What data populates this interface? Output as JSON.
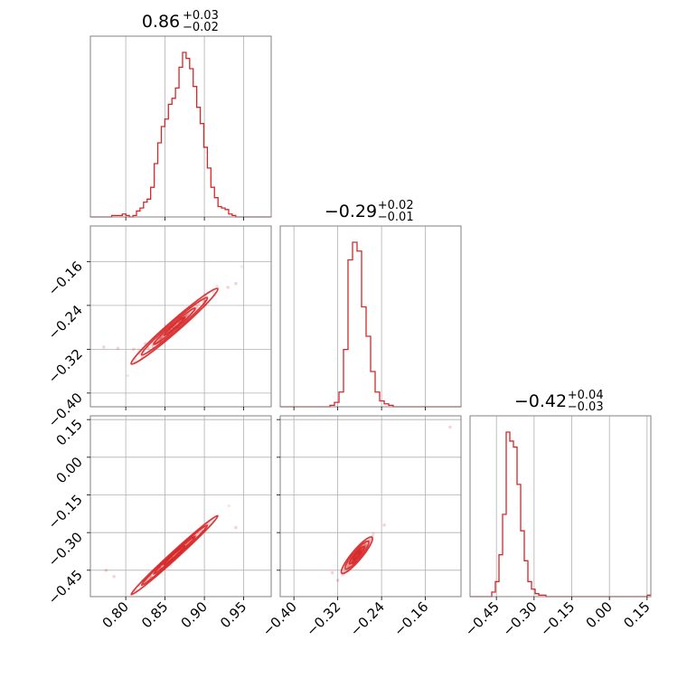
{
  "chart_data": {
    "type": "corner",
    "color": "#d62728",
    "grid": true,
    "titles": [
      {
        "value": "0.86",
        "plus": "+0.03",
        "minus": "−0.02"
      },
      {
        "value": "−0.29",
        "plus": "+0.02",
        "minus": "−0.01"
      },
      {
        "value": "−0.42",
        "plus": "+0.04",
        "minus": "−0.03"
      }
    ],
    "params": [
      {
        "range": [
          0.755,
          0.985
        ],
        "ticks": [
          0.8,
          0.85,
          0.9,
          0.95
        ],
        "tick_labels": [
          "0.80",
          "0.85",
          "0.90",
          "0.95"
        ]
      },
      {
        "range": [
          -0.425,
          -0.095
        ],
        "ticks": [
          -0.4,
          -0.32,
          -0.24,
          -0.16
        ],
        "tick_labels": [
          "−0.40",
          "−0.32",
          "−0.24",
          "−0.16"
        ]
      },
      {
        "range": [
          -0.555,
          0.165
        ],
        "ticks": [
          -0.45,
          -0.3,
          -0.15,
          0.0,
          0.15
        ],
        "tick_labels": [
          "−0.45",
          "−0.30",
          "−0.15",
          "0.00",
          "0.15"
        ]
      }
    ],
    "histograms": [
      {
        "edges_min": 0.755,
        "edges_max": 0.985,
        "counts": [
          0,
          0,
          0,
          0,
          0,
          0,
          1,
          1,
          1,
          2,
          1,
          0,
          1,
          4,
          6,
          10,
          12,
          20,
          36,
          50,
          61,
          66,
          76,
          80,
          87,
          101,
          111,
          107,
          100,
          88,
          74,
          63,
          47,
          33,
          20,
          13,
          7,
          6,
          5,
          2,
          1,
          0,
          0,
          0,
          0,
          0,
          0,
          0,
          0,
          0,
          0
        ]
      },
      {
        "edges_min": -0.425,
        "edges_max": -0.095,
        "counts": [
          0,
          0,
          0,
          0,
          0,
          0,
          0,
          0,
          0,
          0,
          0,
          1,
          3,
          10,
          39,
          100,
          112,
          106,
          68,
          48,
          24,
          10,
          4,
          2,
          1,
          0,
          0,
          0,
          0,
          0,
          0,
          0,
          0,
          0,
          0,
          0,
          0,
          0,
          0,
          0
        ]
      },
      {
        "edges_min": -0.555,
        "edges_max": 0.165,
        "counts": [
          0,
          0,
          0,
          0,
          0,
          0,
          3,
          10,
          28,
          55,
          110,
          104,
          100,
          75,
          44,
          24,
          10,
          5,
          2,
          1,
          1,
          0,
          0,
          0,
          0,
          0,
          0,
          0,
          0,
          0,
          0,
          0,
          0,
          0,
          0,
          0,
          0,
          0,
          0,
          0,
          0,
          0,
          0,
          0,
          0,
          0,
          0,
          0,
          0,
          1
        ]
      }
    ],
    "pairs": [
      {
        "x_param": 0,
        "y_param": 1,
        "slope": 1.25,
        "center": [
          0.862,
          -0.278
        ],
        "spread": [
          0.022,
          0.0045
        ],
        "outliers": [
          [
            0.772,
            -0.316
          ],
          [
            0.79,
            -0.318
          ],
          [
            0.81,
            -0.32
          ],
          [
            0.93,
            -0.207
          ],
          [
            0.94,
            -0.2
          ],
          [
            0.825,
            -0.31
          ]
        ]
      },
      {
        "x_param": 0,
        "y_param": 2,
        "slope": 2.85,
        "center": [
          0.862,
          -0.39
        ],
        "spread": [
          0.022,
          0.0065
        ],
        "outliers": [
          [
            0.775,
            -0.45
          ],
          [
            0.785,
            -0.475
          ],
          [
            0.94,
            -0.28
          ]
        ]
      },
      {
        "x_param": 1,
        "y_param": 2,
        "slope": 2.6,
        "center": [
          -0.285,
          -0.39
        ],
        "spread": [
          0.011,
          0.009
        ],
        "outliers": [
          [
            -0.115,
            0.12
          ],
          [
            -0.32,
            -0.49
          ],
          [
            -0.33,
            -0.46
          ],
          [
            -0.235,
            -0.27
          ]
        ]
      }
    ]
  }
}
